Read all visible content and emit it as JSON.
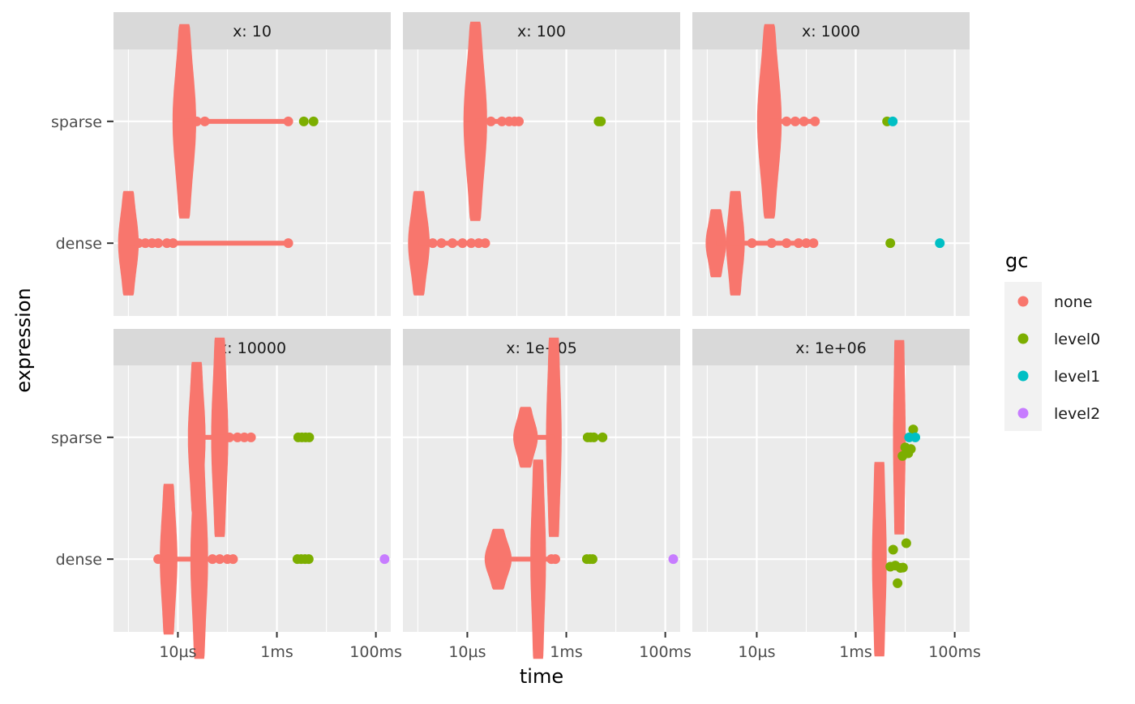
{
  "chart_data": {
    "type": "scatter",
    "xlabel": "time",
    "ylabel": "expression",
    "x_scale": "log",
    "x_unit": "seconds",
    "xlim": [
      5e-07,
      0.2
    ],
    "x_ticks": [
      {
        "value": 1e-05,
        "label": "10µs"
      },
      {
        "value": 0.001,
        "label": "1ms"
      },
      {
        "value": 0.1,
        "label": "100ms"
      }
    ],
    "categories": [
      "dense",
      "sparse"
    ],
    "grid": true,
    "legend": {
      "title": "gc",
      "position": "right",
      "entries": [
        {
          "name": "none",
          "color": "#F8766D"
        },
        {
          "name": "level0",
          "color": "#7CAE00"
        },
        {
          "name": "level1",
          "color": "#00BFC4"
        },
        {
          "name": "level2",
          "color": "#C77CFF"
        }
      ]
    },
    "panels": [
      {
        "label": "x: 10",
        "dense": {
          "none": {
            "violins": [
              {
                "center": 1e-06,
                "height": 0.43,
                "width_decades": 0.22
              }
            ],
            "tail": [
              1.6e-06,
              2.2e-06,
              3e-06,
              4e-06,
              6e-06,
              8e-06,
              0.0017
            ]
          },
          "level0": [],
          "level1": [],
          "level2": []
        },
        "sparse": {
          "none": {
            "violins": [
              {
                "center": 1.35e-05,
                "height": 0.8,
                "width_decades": 0.28
              }
            ],
            "tail": [
              2.4e-05,
              3.5e-05,
              0.0017
            ]
          },
          "level0": [
            0.0035,
            0.0055
          ],
          "level1": [],
          "level2": []
        }
      },
      {
        "label": "x: 100",
        "dense": {
          "none": {
            "violins": [
              {
                "center": 1.05e-06,
                "height": 0.43,
                "width_decades": 0.24
              }
            ],
            "tail": [
              2e-06,
              3e-06,
              5e-06,
              8e-06,
              1.2e-05,
              1.7e-05,
              2.3e-05
            ]
          },
          "level0": [],
          "level1": [],
          "level2": []
        },
        "sparse": {
          "none": {
            "violins": [
              {
                "center": 1.45e-05,
                "height": 0.82,
                "width_decades": 0.28
              }
            ],
            "tail": [
              3e-05,
              5e-05,
              7e-05,
              9e-05,
              0.00011
            ]
          },
          "level0": [
            0.0045,
            0.005
          ],
          "level1": [],
          "level2": []
        }
      },
      {
        "label": "x: 1000",
        "dense": {
          "none": {
            "violins": [
              {
                "center": 1.5e-06,
                "height": 0.28,
                "width_decades": 0.22
              },
              {
                "center": 3.7e-06,
                "height": 0.43,
                "width_decades": 0.18
              }
            ],
            "tail": [
              8e-06,
              2e-05,
              4e-05,
              7e-05,
              0.0001,
              0.00014
            ]
          },
          "level0": [
            0.005
          ],
          "level1": [
            0.05
          ],
          "level2": []
        },
        "sparse": {
          "none": {
            "violins": [
              {
                "center": 1.8e-05,
                "height": 0.8,
                "width_decades": 0.3
              }
            ],
            "tail": [
              4e-05,
              6e-05,
              9e-05,
              0.00015
            ]
          },
          "level0": [
            0.0043
          ],
          "level1": [
            0.0056
          ],
          "level2": []
        }
      },
      {
        "label": "x: 10000",
        "dense": {
          "none": {
            "violins": [
              {
                "center": 6.5e-06,
                "height": 0.62,
                "width_decades": 0.16
              },
              {
                "center": 2.7e-05,
                "height": 0.82,
                "width_decades": 0.16
              }
            ],
            "tail": [
              4e-06,
              5e-05,
              7e-05,
              0.0001,
              0.00013
            ]
          },
          "level0": [
            0.0026,
            0.0031,
            0.0037,
            0.0044
          ],
          "level1": [],
          "level2": [
            0.15
          ]
        },
        "sparse": {
          "none": {
            "violins": [
              {
                "center": 2.4e-05,
                "height": 0.62,
                "width_decades": 0.16
              },
              {
                "center": 7e-05,
                "height": 0.82,
                "width_decades": 0.15
              }
            ],
            "tail": [
              0.00011,
              0.00016,
              0.00022,
              0.0003
            ]
          },
          "level0": [
            0.0027,
            0.0032,
            0.0038,
            0.0045
          ],
          "level1": [],
          "level2": []
        }
      },
      {
        "label": "x: 1e+05",
        "dense": {
          "none": {
            "violins": [
              {
                "center": 4.2e-05,
                "height": 0.25,
                "width_decades": 0.35
              },
              {
                "center": 0.00027,
                "height": 0.82,
                "width_decades": 0.12
              }
            ],
            "tail": [
              0.0005,
              0.0006
            ]
          },
          "level0": [
            0.0026,
            0.003,
            0.0034
          ],
          "level1": [],
          "level2": [
            0.145
          ]
        },
        "sparse": {
          "none": {
            "violins": [
              {
                "center": 0.00015,
                "height": 0.25,
                "width_decades": 0.3
              },
              {
                "center": 0.00056,
                "height": 0.82,
                "width_decades": 0.12
              }
            ],
            "tail": []
          },
          "level0": [
            0.0027,
            0.0031,
            0.0036,
            0.0054
          ],
          "level1": [],
          "level2": []
        }
      },
      {
        "label": "x: 1e+06",
        "dense": {
          "none": {
            "violins": [
              {
                "center": 0.003,
                "height": 0.8,
                "width_decades": 0.1
              }
            ],
            "tail": []
          },
          "level0": [
            0.005,
            0.0057,
            0.0063,
            0.007,
            0.008,
            0.009,
            0.0105
          ],
          "level1": [],
          "level2": []
        },
        "sparse": {
          "none": {
            "violins": [
              {
                "center": 0.0076,
                "height": 0.8,
                "width_decades": 0.06
              }
            ],
            "tail": [
              0.0084,
              0.009
            ]
          },
          "level0": [
            0.0088,
            0.01,
            0.0115,
            0.013,
            0.0145
          ],
          "level1": [
            0.016,
            0.012
          ],
          "level2": []
        }
      }
    ]
  }
}
